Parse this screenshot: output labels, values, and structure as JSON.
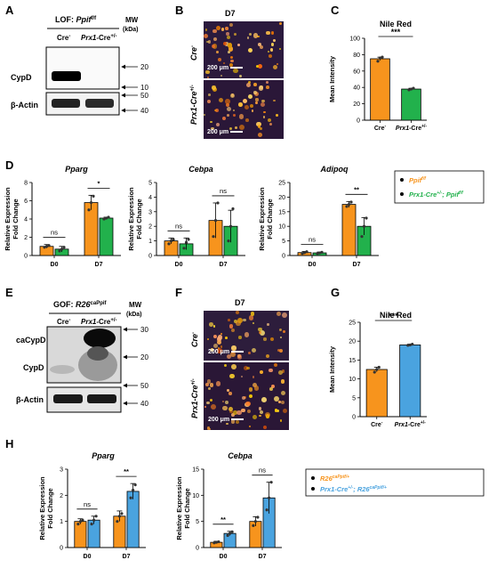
{
  "panels": {
    "A": {
      "label": "A",
      "title_prefix": "LOF: ",
      "title_gene": "Ppif",
      "title_sup": "f/f",
      "mw_label": "MW",
      "mw_unit": "(kDa)",
      "lane1": "Cre",
      "lane1_sup": "-",
      "lane2": "Prx1",
      "lane2_suffix": "-Cre",
      "lane2_sup": "+/-",
      "band1": "CypD",
      "band2": "β-Actin",
      "mw_marks": [
        "20",
        "10",
        "50",
        "40"
      ]
    },
    "B": {
      "label": "B",
      "title": "D7",
      "row1": "Cre",
      "row1_sup": "-",
      "row2": "Prx1-Cre",
      "row2_sup": "+/-",
      "scale": "200 μm"
    },
    "C": {
      "label": "C"
    },
    "D": {
      "label": "D",
      "legend": [
        {
          "text": "Ppif",
          "sup": "f/f",
          "color": "#f7941d"
        },
        {
          "text": "Prx1-Cre",
          "sup": "+/-",
          "text2": "; Ppif",
          "sup2": "f/f",
          "color": "#22b14c"
        }
      ]
    },
    "E": {
      "label": "E",
      "title_prefix": "GOF: ",
      "title_gene": "R26",
      "title_sup": "caPpif",
      "mw_label": "MW",
      "mw_unit": "(kDa)",
      "lane1": "Cre",
      "lane1_sup": "-",
      "lane2": "Prx1",
      "lane2_suffix": "-Cre",
      "lane2_sup": "+/-",
      "band0": "caCypD",
      "band1": "CypD",
      "band2": "β-Actin",
      "mw_marks": [
        "30",
        "20",
        "50",
        "40"
      ]
    },
    "F": {
      "label": "F",
      "title": "D7",
      "row1": "Cre",
      "row1_sup": "-",
      "row2": "Prx1-Cre",
      "row2_sup": "+/-",
      "scale": "200 μm"
    },
    "G": {
      "label": "G"
    },
    "H": {
      "label": "H",
      "legend": [
        {
          "text": "R26",
          "sup": "caPpif/+",
          "color": "#f7941d"
        },
        {
          "text": "Prx1-Cre",
          "sup": "+/-",
          "text2": "; R26",
          "sup2": "caPpif/+",
          "color": "#4aa3df"
        }
      ]
    }
  },
  "colors": {
    "orange": "#f7941d",
    "green": "#22b14c",
    "blue": "#4aa3df"
  },
  "chart_data": [
    {
      "id": "C",
      "type": "bar",
      "title": "Nile Red",
      "ylabel": "Mean Intensity",
      "categories": [
        "Cre-",
        "Prx1-Cre+/-"
      ],
      "values": [
        75,
        38
      ],
      "errors": [
        2,
        1
      ],
      "ylim": [
        0,
        100
      ],
      "yticks": [
        0,
        20,
        40,
        60,
        80,
        100
      ],
      "colors": [
        "#f7941d",
        "#22b14c"
      ],
      "points": [
        [
          72,
          76,
          77
        ],
        [
          37,
          38,
          39
        ]
      ],
      "significance": [
        {
          "from": 0,
          "to": 1,
          "text": "***"
        }
      ]
    },
    {
      "id": "D1",
      "type": "bar",
      "title": "Pparg",
      "ylabel": "Relative Expression\nFold Change",
      "categories": [
        "D0",
        "D7"
      ],
      "ylim": [
        0,
        8
      ],
      "yticks": [
        0,
        2,
        4,
        6,
        8
      ],
      "series": [
        {
          "values": [
            1.0,
            5.8
          ],
          "errors": [
            0.2,
            0.8
          ],
          "color": "#f7941d",
          "points": [
            [
              0.9,
              1.0,
              1.1
            ],
            [
              5.0,
              5.8,
              6.5
            ]
          ]
        },
        {
          "values": [
            0.7,
            4.1
          ],
          "errors": [
            0.3,
            0.1
          ],
          "color": "#22b14c",
          "points": [
            [
              0.5,
              0.7,
              0.9
            ],
            [
              4.0,
              4.1,
              4.2
            ]
          ]
        }
      ],
      "significance": [
        {
          "cat": 0,
          "text": "ns"
        },
        {
          "cat": 1,
          "text": "*"
        }
      ]
    },
    {
      "id": "D2",
      "type": "bar",
      "title": "Cebpa",
      "ylabel": "Relative Expression\nFold Change",
      "categories": [
        "D0",
        "D7"
      ],
      "ylim": [
        0,
        5
      ],
      "yticks": [
        0,
        1,
        2,
        3,
        4,
        5
      ],
      "series": [
        {
          "values": [
            1.0,
            2.4
          ],
          "errors": [
            0.2,
            1.2
          ],
          "color": "#f7941d",
          "points": [
            [
              0.8,
              1.0,
              1.1
            ],
            [
              1.3,
              2.4,
              3.6
            ]
          ]
        },
        {
          "values": [
            0.8,
            2.0
          ],
          "errors": [
            0.4,
            1.1
          ],
          "color": "#22b14c",
          "points": [
            [
              0.5,
              0.9,
              1.1
            ],
            [
              1.0,
              2.0,
              3.2
            ]
          ]
        }
      ],
      "significance": [
        {
          "cat": 0,
          "text": "ns"
        },
        {
          "cat": 1,
          "text": "ns"
        }
      ]
    },
    {
      "id": "D3",
      "type": "bar",
      "title": "Adipoq",
      "ylabel": "Relative Expression\nFold Change",
      "categories": [
        "D0",
        "D7"
      ],
      "ylim": [
        0,
        25
      ],
      "yticks": [
        0,
        5,
        10,
        15,
        20,
        25
      ],
      "series": [
        {
          "values": [
            1.0,
            17.5
          ],
          "errors": [
            0.4,
            1.0
          ],
          "color": "#f7941d",
          "points": [
            [
              0.7,
              1.0,
              1.3
            ],
            [
              16.8,
              17.5,
              18.3
            ]
          ]
        },
        {
          "values": [
            0.9,
            10.0
          ],
          "errors": [
            0.3,
            3.0
          ],
          "color": "#22b14c",
          "points": [
            [
              0.7,
              0.9,
              1.1
            ],
            [
              6.5,
              10.0,
              12.8
            ]
          ]
        }
      ],
      "significance": [
        {
          "cat": 0,
          "text": "ns"
        },
        {
          "cat": 1,
          "text": "**"
        }
      ]
    },
    {
      "id": "G",
      "type": "bar",
      "title": "Nile Red",
      "ylabel": "Mean Intensity",
      "categories": [
        "Cre-",
        "Prx1-Cre+/-"
      ],
      "values": [
        12.5,
        19.0
      ],
      "errors": [
        0.6,
        0.2
      ],
      "ylim": [
        0,
        25
      ],
      "yticks": [
        0,
        5,
        10,
        15,
        20,
        25
      ],
      "colors": [
        "#f7941d",
        "#4aa3df"
      ],
      "points": [
        [
          11.8,
          12.5,
          13.1
        ],
        [
          18.9,
          19.0,
          19.2
        ]
      ],
      "significance": [
        {
          "from": 0,
          "to": 1,
          "text": "***"
        }
      ]
    },
    {
      "id": "H1",
      "type": "bar",
      "title": "Pparg",
      "ylabel": "Relative Expression\nFold Change",
      "categories": [
        "D0",
        "D7"
      ],
      "ylim": [
        0,
        3
      ],
      "yticks": [
        0,
        1,
        2,
        3
      ],
      "series": [
        {
          "values": [
            1.0,
            1.2
          ],
          "errors": [
            0.1,
            0.2
          ],
          "color": "#f7941d",
          "points": [
            [
              0.9,
              1.0,
              1.05
            ],
            [
              1.0,
              1.2,
              1.3
            ]
          ]
        },
        {
          "values": [
            1.05,
            2.15
          ],
          "errors": [
            0.15,
            0.3
          ],
          "color": "#4aa3df",
          "points": [
            [
              0.9,
              1.05,
              1.2
            ],
            [
              1.9,
              2.2,
              2.4
            ]
          ]
        }
      ],
      "significance": [
        {
          "cat": 0,
          "text": "ns"
        },
        {
          "cat": 1,
          "text": "**"
        }
      ]
    },
    {
      "id": "H2",
      "type": "bar",
      "title": "Cebpa",
      "ylabel": "Relative Expression\nFold Change",
      "categories": [
        "D0",
        "D7"
      ],
      "ylim": [
        0,
        15
      ],
      "yticks": [
        0,
        5,
        10,
        15
      ],
      "series": [
        {
          "values": [
            1.0,
            5.0
          ],
          "errors": [
            0.2,
            0.9
          ],
          "color": "#f7941d",
          "points": [
            [
              0.9,
              1.0,
              1.1
            ],
            [
              4.2,
              5.0,
              5.8
            ]
          ]
        },
        {
          "values": [
            2.7,
            9.5
          ],
          "errors": [
            0.4,
            3.0
          ],
          "color": "#4aa3df",
          "points": [
            [
              2.3,
              2.7,
              3.0
            ],
            [
              7.2,
              9.5,
              12.5
            ]
          ]
        }
      ],
      "significance": [
        {
          "cat": 0,
          "text": "**"
        },
        {
          "cat": 1,
          "text": "ns"
        }
      ]
    }
  ]
}
